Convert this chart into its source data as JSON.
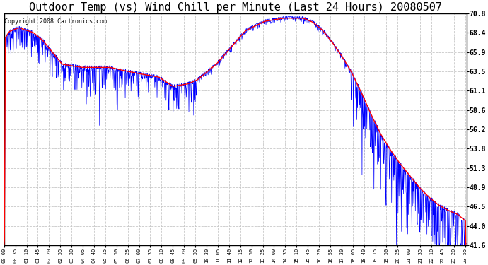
{
  "title": "Outdoor Temp (vs) Wind Chill per Minute (Last 24 Hours) 20080507",
  "copyright": "Copyright 2008 Cartronics.com",
  "ylim": [
    41.6,
    70.8
  ],
  "yticks": [
    41.6,
    44.0,
    46.5,
    48.9,
    51.3,
    53.8,
    56.2,
    58.6,
    61.1,
    63.5,
    65.9,
    68.4,
    70.8
  ],
  "background_color": "#ffffff",
  "plot_bg_color": "#ffffff",
  "grid_color": "#c8c8c8",
  "line_color_temp": "#ff0000",
  "line_color_wind": "#0000ff",
  "title_fontsize": 11,
  "copyright_fontsize": 6,
  "xtick_interval": 35,
  "n_minutes": 1440
}
